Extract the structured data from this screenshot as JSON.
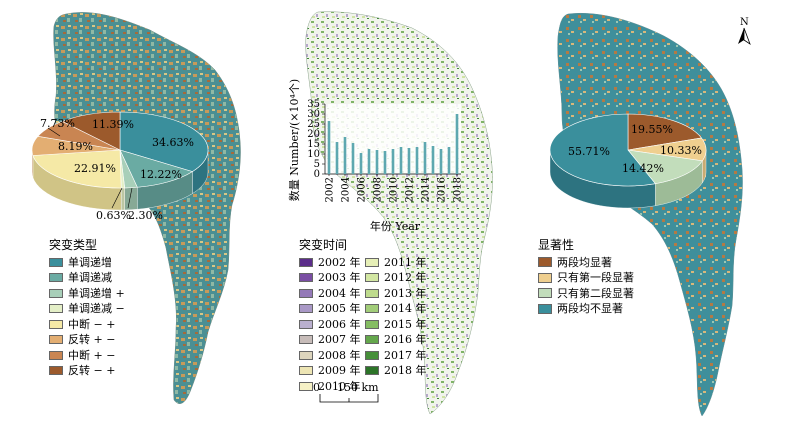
{
  "panel_left": {
    "pie": {
      "slices": [
        {
          "label": "34.63%",
          "value": 34.63,
          "color": "#3a8f9c",
          "side": "#2d7380"
        },
        {
          "label": "12.22%",
          "value": 12.22,
          "color": "#6aaba3",
          "side": "#578c86"
        },
        {
          "label": "2.30%",
          "value": 2.3,
          "color": "#a8cfb9",
          "side": "#87a996"
        },
        {
          "label": "0.63%",
          "value": 0.63,
          "color": "#e4efc7",
          "side": "#bcc6a3"
        },
        {
          "label": "22.91%",
          "value": 22.91,
          "color": "#f5e9a6",
          "side": "#d0c486"
        },
        {
          "label": "8.19%",
          "value": 8.19,
          "color": "#e3ae72",
          "side": "#bd8f5b"
        },
        {
          "label": "7.73%",
          "value": 7.73,
          "color": "#c98552",
          "side": "#a56b41"
        },
        {
          "label": "11.39%",
          "value": 11.39,
          "color": "#9c5a2c",
          "side": "#7d4622"
        }
      ]
    },
    "legend": {
      "title": "突变类型",
      "items": [
        {
          "label": "单调递增",
          "color": "#3a8f9c"
        },
        {
          "label": "单调递减",
          "color": "#6aaba3"
        },
        {
          "label": "单调递增 +",
          "color": "#a8cfb9"
        },
        {
          "label": "单调递减 −",
          "color": "#e4efc7"
        },
        {
          "label": "中断 − +",
          "color": "#f5e9a6"
        },
        {
          "label": "反转 + −",
          "color": "#e3ae72"
        },
        {
          "label": "中断 + −",
          "color": "#c98552"
        },
        {
          "label": "反转 − +",
          "color": "#9c5a2c"
        }
      ]
    }
  },
  "panel_middle": {
    "chart_data": {
      "type": "bar",
      "categories": [
        "2002",
        "2003",
        "2004",
        "2005",
        "2006",
        "2007",
        "2008",
        "2009",
        "2010",
        "2011",
        "2012",
        "2013",
        "2014",
        "2015",
        "2016",
        "2017",
        "2018"
      ],
      "values": [
        26.5,
        16,
        18.5,
        15.5,
        10.5,
        12.5,
        12,
        11.5,
        12.5,
        13.5,
        13,
        13.5,
        16,
        14,
        12.5,
        13.5,
        30
      ],
      "tick_labels": [
        "2002",
        "2004",
        "2006",
        "2008",
        "2010",
        "2012",
        "2014",
        "2016",
        "2018"
      ],
      "ylabel": "数量 Number/(×10⁴个)",
      "xlabel": "年份 Year",
      "ylim": [
        0,
        35
      ],
      "yticks": [
        "0",
        "5",
        "10",
        "15",
        "20",
        "25",
        "30",
        "35"
      ],
      "bar_color": "#5ea8b0"
    },
    "legend": {
      "title": "突变时间",
      "col1": [
        {
          "label": "2002 年",
          "color": "#5b2d8a"
        },
        {
          "label": "2003 年",
          "color": "#7a4ea3"
        },
        {
          "label": "2004 年",
          "color": "#9479b8"
        },
        {
          "label": "2005 年",
          "color": "#a998c6"
        },
        {
          "label": "2006 年",
          "color": "#bab0cf"
        },
        {
          "label": "2007 年",
          "color": "#c7bcb9"
        },
        {
          "label": "2008 年",
          "color": "#ddd5bd"
        },
        {
          "label": "2009 年",
          "color": "#ede5b4"
        },
        {
          "label": "2010 年",
          "color": "#f6f1c6"
        }
      ],
      "col2": [
        {
          "label": "2011 年",
          "color": "#e6efb7"
        },
        {
          "label": "2012 年",
          "color": "#d3e7a3"
        },
        {
          "label": "2013 年",
          "color": "#bedb8d"
        },
        {
          "label": "2014 年",
          "color": "#a2cd79"
        },
        {
          "label": "2015 年",
          "color": "#85bd63"
        },
        {
          "label": "2016 年",
          "color": "#64a74c"
        },
        {
          "label": "2017 年",
          "color": "#468f3a"
        },
        {
          "label": "2018 年",
          "color": "#2c7428"
        }
      ]
    },
    "scale_bar": {
      "zero": "0",
      "label": "150 km"
    }
  },
  "panel_right": {
    "north_label": "N",
    "pie": {
      "slices": [
        {
          "label": "19.55%",
          "value": 19.55,
          "color": "#9c5a2c",
          "side": "#7d4622"
        },
        {
          "label": "10.33%",
          "value": 10.33,
          "color": "#efcf8f",
          "side": "#c9ab72"
        },
        {
          "label": "14.42%",
          "value": 14.42,
          "color": "#c2ddbb",
          "side": "#9dbb97"
        },
        {
          "label": "55.71%",
          "value": 55.71,
          "color": "#3a8f9c",
          "side": "#2d7380"
        }
      ]
    },
    "legend": {
      "title": "显著性",
      "items": [
        {
          "label": "两段均显著",
          "color": "#9c5a2c"
        },
        {
          "label": "只有第一段显著",
          "color": "#efcf8f"
        },
        {
          "label": "只有第二段显著",
          "color": "#c2ddbb"
        },
        {
          "label": "两段均不显著",
          "color": "#3a8f9c"
        }
      ]
    }
  }
}
